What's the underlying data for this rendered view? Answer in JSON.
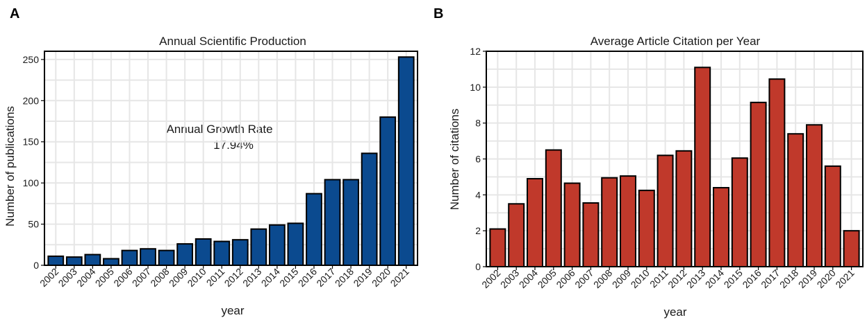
{
  "chart_data": [
    {
      "panel": "A",
      "type": "bar",
      "title": "Annual Scientific Production",
      "xlabel": "year",
      "ylabel": "Number of publications",
      "ylim": [
        0,
        260
      ],
      "yticks": [
        0,
        50,
        100,
        150,
        200,
        250
      ],
      "categories": [
        "2002",
        "2003",
        "2004",
        "2005",
        "2006",
        "2007",
        "2008",
        "2009",
        "2010",
        "2011",
        "2012",
        "2013",
        "2014",
        "2015",
        "2016",
        "2017",
        "2018",
        "2019",
        "2020",
        "2021"
      ],
      "values": [
        11,
        10,
        13,
        8,
        18,
        20,
        18,
        26,
        32,
        29,
        31,
        44,
        49,
        51,
        87,
        104,
        104,
        136,
        180,
        253
      ],
      "color": "#0b4a8f",
      "annotation": {
        "line1": "Annual Growth Rate",
        "line2": "17.94%"
      }
    },
    {
      "panel": "B",
      "type": "bar",
      "title": "Average Article Citation per Year",
      "xlabel": "year",
      "ylabel": "Number of citations",
      "ylim": [
        0,
        12
      ],
      "yticks": [
        0,
        2,
        4,
        6,
        8,
        10,
        12
      ],
      "categories": [
        "2002",
        "2003",
        "2004",
        "2005",
        "2006",
        "2007",
        "2008",
        "2009",
        "2010",
        "2011",
        "2012",
        "2013",
        "2014",
        "2015",
        "2016",
        "2017",
        "2018",
        "2019",
        "2020",
        "2021"
      ],
      "values": [
        2.1,
        3.5,
        4.9,
        6.5,
        4.65,
        3.55,
        4.95,
        5.05,
        4.25,
        6.2,
        6.45,
        11.1,
        4.4,
        6.05,
        9.15,
        10.45,
        7.4,
        7.9,
        5.6,
        2.0
      ],
      "color": "#c0392b"
    }
  ]
}
